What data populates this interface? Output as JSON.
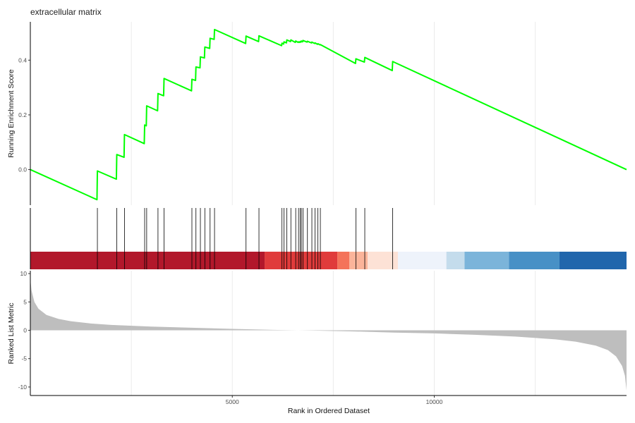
{
  "chart_data": {
    "type": "line",
    "title": "extracellular matrix",
    "xlabel": "Rank in Ordered Dataset",
    "xlim": [
      0,
      14760
    ],
    "x_ticks": [
      5000,
      10000
    ],
    "x_tick_labels": [
      "5000",
      "10000"
    ],
    "grid": "vertical",
    "panels": [
      {
        "name": "running-enrichment-score",
        "ylabel": "Running Enrichment Score",
        "ylim": [
          -0.13,
          0.54
        ],
        "y_ticks": [
          0.0,
          0.2,
          0.4
        ],
        "y_tick_labels": [
          "0.0",
          "0.2",
          "0.4"
        ],
        "color": "#00ff00",
        "x": [
          0,
          1650,
          1660,
          2130,
          2140,
          2320,
          2330,
          2820,
          2830,
          2870,
          2880,
          3150,
          3160,
          3300,
          3310,
          3990,
          4000,
          4090,
          4100,
          4200,
          4210,
          4310,
          4320,
          4440,
          4450,
          4550,
          4560,
          5330,
          5340,
          5650,
          5660,
          6220,
          6230,
          6270,
          6280,
          6340,
          6350,
          6440,
          6450,
          6560,
          6570,
          6630,
          6640,
          6670,
          6680,
          6700,
          6710,
          6740,
          6750,
          6850,
          6860,
          6960,
          6970,
          7040,
          7050,
          7110,
          7120,
          7170,
          7180,
          8050,
          8060,
          8270,
          8280,
          8960,
          8970,
          14760
        ],
        "y": [
          0.0,
          -0.11,
          -0.005,
          -0.035,
          0.055,
          0.045,
          0.128,
          0.095,
          0.163,
          0.16,
          0.233,
          0.215,
          0.278,
          0.27,
          0.333,
          0.288,
          0.33,
          0.326,
          0.375,
          0.372,
          0.412,
          0.408,
          0.448,
          0.443,
          0.48,
          0.476,
          0.512,
          0.461,
          0.488,
          0.468,
          0.489,
          0.453,
          0.462,
          0.459,
          0.467,
          0.463,
          0.474,
          0.468,
          0.474,
          0.465,
          0.47,
          0.465,
          0.467,
          0.465,
          0.468,
          0.466,
          0.47,
          0.467,
          0.472,
          0.466,
          0.469,
          0.463,
          0.466,
          0.461,
          0.463,
          0.458,
          0.46,
          0.456,
          0.457,
          0.388,
          0.405,
          0.393,
          0.41,
          0.362,
          0.395,
          0.0
        ]
      },
      {
        "name": "gene-set-hits",
        "hits": [
          1660,
          2140,
          2330,
          2830,
          2880,
          3160,
          3310,
          4000,
          4100,
          4210,
          4320,
          4450,
          4560,
          5340,
          5660,
          6230,
          6280,
          6350,
          6450,
          6570,
          6640,
          6680,
          6710,
          6750,
          6860,
          6970,
          7050,
          7120,
          7180,
          8060,
          8280,
          8970
        ],
        "color_bar": [
          {
            "start": 0,
            "end": 5800,
            "color": "#b2182b"
          },
          {
            "start": 5800,
            "end": 7600,
            "color": "#e03b3b"
          },
          {
            "start": 7600,
            "end": 7900,
            "color": "#f4735a"
          },
          {
            "start": 7900,
            "end": 8350,
            "color": "#fbb49a"
          },
          {
            "start": 8350,
            "end": 9100,
            "color": "#fde2d6"
          },
          {
            "start": 9100,
            "end": 10300,
            "color": "#eef3fb"
          },
          {
            "start": 10300,
            "end": 10750,
            "color": "#c4dcec"
          },
          {
            "start": 10750,
            "end": 11850,
            "color": "#7bb4da"
          },
          {
            "start": 11850,
            "end": 13100,
            "color": "#4790c6"
          },
          {
            "start": 13100,
            "end": 14760,
            "color": "#2166ac"
          }
        ]
      },
      {
        "name": "ranked-list-metric",
        "ylabel": "Ranked List Metric",
        "ylim": [
          -11.5,
          10.5
        ],
        "y_ticks": [
          10,
          5,
          0,
          -5,
          -10
        ],
        "y_tick_labels": [
          "10",
          "5",
          "0",
          "-5",
          "-10"
        ],
        "color": "#bebebe",
        "x": [
          0,
          30,
          100,
          200,
          400,
          700,
          1000,
          1500,
          2000,
          3000,
          4000,
          5000,
          6000,
          7000,
          8000,
          9000,
          10000,
          11000,
          12000,
          13000,
          13500,
          14000,
          14300,
          14500,
          14650,
          14720,
          14760
        ],
        "y": [
          9.0,
          7.0,
          5.0,
          3.8,
          2.7,
          2.0,
          1.6,
          1.2,
          0.95,
          0.65,
          0.45,
          0.25,
          0.08,
          -0.05,
          -0.2,
          -0.4,
          -0.55,
          -0.8,
          -1.1,
          -1.6,
          -2.0,
          -2.7,
          -3.5,
          -4.6,
          -6.3,
          -8.0,
          -10.6
        ]
      }
    ]
  }
}
